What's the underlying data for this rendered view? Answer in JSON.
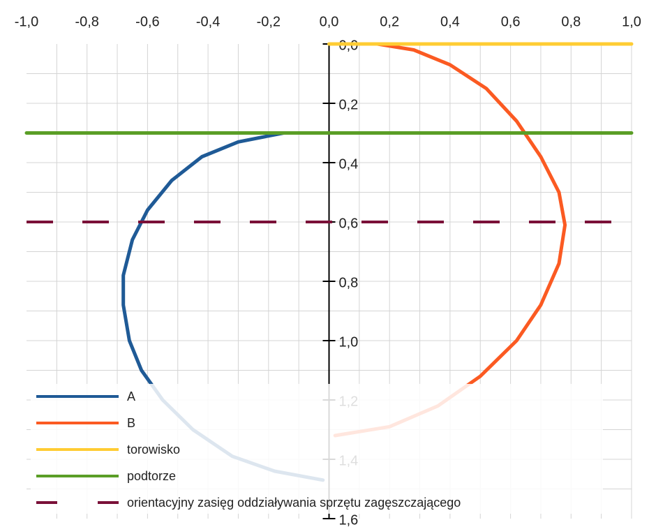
{
  "chart_data": {
    "type": "line",
    "xlim": [
      -1,
      1
    ],
    "ylim": [
      0,
      1.6
    ],
    "y_inverted": true,
    "xticks": [
      {
        "value": -1,
        "label": "-1,0"
      },
      {
        "value": -0.8,
        "label": "-0,8"
      },
      {
        "value": -0.6,
        "label": "-0,6"
      },
      {
        "value": -0.4,
        "label": "-0,4"
      },
      {
        "value": -0.2,
        "label": "-0,2"
      },
      {
        "value": 0,
        "label": "0,0"
      },
      {
        "value": 0.2,
        "label": "0,2"
      },
      {
        "value": 0.4,
        "label": "0,4"
      },
      {
        "value": 0.6,
        "label": "0,6"
      },
      {
        "value": 0.8,
        "label": "0,8"
      },
      {
        "value": 1,
        "label": "1,0"
      }
    ],
    "yticks": [
      {
        "value": 0,
        "label": "0,0"
      },
      {
        "value": 0.2,
        "label": "0,2"
      },
      {
        "value": 0.4,
        "label": "0,4"
      },
      {
        "value": 0.6,
        "label": "0,6"
      },
      {
        "value": 0.8,
        "label": "0,8"
      },
      {
        "value": 1,
        "label": "1,0"
      },
      {
        "value": 1.2,
        "label": "1,2"
      },
      {
        "value": 1.4,
        "label": "1,4"
      },
      {
        "value": 1.6,
        "label": "1,6"
      }
    ],
    "grid": true,
    "x_grid": [
      -0.9,
      -0.8,
      -0.7,
      -0.6,
      -0.5,
      -0.4,
      -0.3,
      -0.2,
      -0.1,
      0.1,
      0.2,
      0.3,
      0.4,
      0.5,
      0.6,
      0.7,
      0.8,
      0.9,
      1
    ],
    "y_grid": [
      0.1,
      0.2,
      0.3,
      0.4,
      0.5,
      0.6,
      0.7,
      0.8,
      0.9,
      1,
      1.1,
      1.2,
      1.3,
      1.4,
      1.5
    ],
    "legend": "lower left",
    "series": [
      {
        "name": "A",
        "color": "#1f5a96",
        "dashed": false,
        "x": [
          -0.15,
          -0.3,
          -0.42,
          -0.52,
          -0.6,
          -0.65,
          -0.68,
          -0.68,
          -0.66,
          -0.62,
          -0.55,
          -0.45,
          -0.32,
          -0.18,
          -0.02
        ],
        "values": [
          0.3,
          0.33,
          0.38,
          0.46,
          0.56,
          0.66,
          0.78,
          0.88,
          1.0,
          1.1,
          1.2,
          1.3,
          1.39,
          1.44,
          1.47
        ]
      },
      {
        "name": "B",
        "color": "#fb5a22",
        "dashed": false,
        "x": [
          0.16,
          0.28,
          0.4,
          0.52,
          0.62,
          0.7,
          0.76,
          0.78,
          0.76,
          0.7,
          0.62,
          0.5,
          0.36,
          0.2,
          0.02
        ],
        "values": [
          0.0,
          0.02,
          0.07,
          0.15,
          0.26,
          0.38,
          0.5,
          0.61,
          0.74,
          0.88,
          1.0,
          1.12,
          1.22,
          1.29,
          1.32
        ]
      },
      {
        "name": "torowisko",
        "color": "#ffcc33",
        "dashed": false,
        "x": [
          0,
          1
        ],
        "values": [
          0,
          0
        ]
      },
      {
        "name": "podtorze",
        "color": "#5a9e26",
        "dashed": false,
        "x": [
          -1,
          1
        ],
        "values": [
          0.3,
          0.3
        ]
      },
      {
        "name": "orientacyjny zasięg oddziaływania sprzętu zagęszczającego",
        "color": "#7a1038",
        "dashed": true,
        "x": [
          -1,
          0.95
        ],
        "values": [
          0.6,
          0.6
        ]
      }
    ]
  }
}
